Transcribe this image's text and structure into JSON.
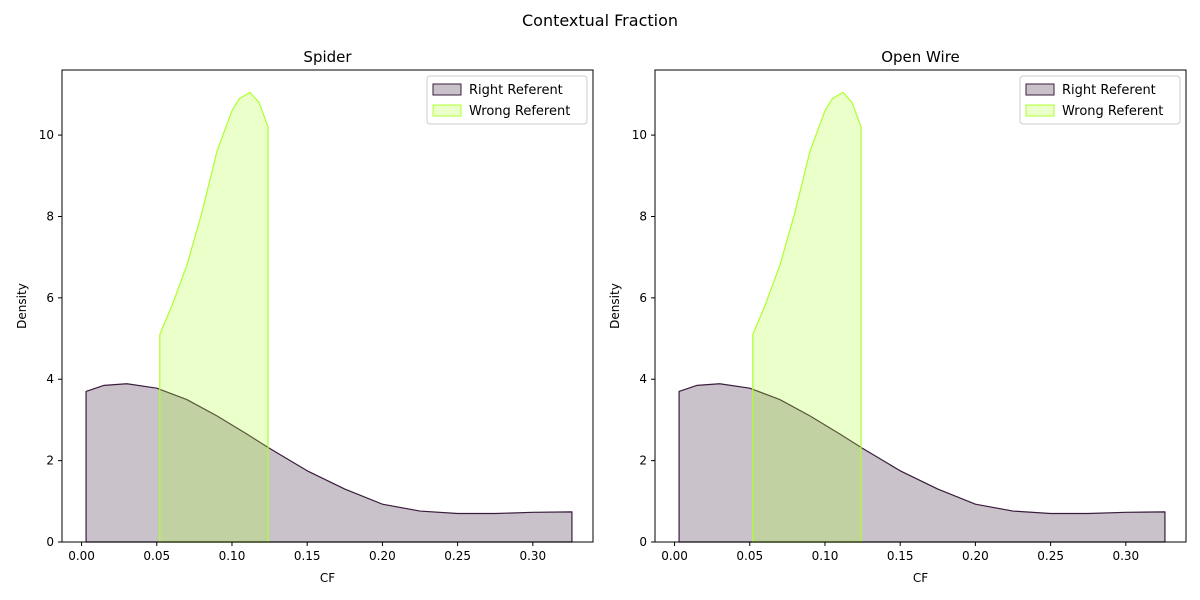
{
  "suptitle": "Contextual Fraction",
  "chart_data": [
    {
      "type": "area",
      "title": "Spider",
      "xlabel": "CF",
      "ylabel": "Density",
      "xlim": [
        -0.013,
        0.34
      ],
      "ylim": [
        0,
        11.6
      ],
      "xticks": [
        0.0,
        0.05,
        0.1,
        0.15,
        0.2,
        0.25,
        0.3
      ],
      "xtick_labels": [
        "0.00",
        "0.05",
        "0.10",
        "0.15",
        "0.20",
        "0.25",
        "0.30"
      ],
      "yticks": [
        0,
        2,
        4,
        6,
        8,
        10
      ],
      "ytick_labels": [
        "0",
        "2",
        "4",
        "6",
        "8",
        "10"
      ],
      "legend": "top-right",
      "series": [
        {
          "name": "Right Referent",
          "color": "#3b1c3e",
          "x": [
            0.003,
            0.015,
            0.03,
            0.05,
            0.07,
            0.09,
            0.11,
            0.125,
            0.15,
            0.175,
            0.2,
            0.225,
            0.25,
            0.275,
            0.3,
            0.326
          ],
          "y": [
            3.7,
            3.85,
            3.89,
            3.78,
            3.5,
            3.1,
            2.65,
            2.3,
            1.75,
            1.3,
            0.93,
            0.76,
            0.7,
            0.7,
            0.73,
            0.74
          ]
        },
        {
          "name": "Wrong Referent",
          "color": "#adff2f",
          "x": [
            0.052,
            0.06,
            0.07,
            0.08,
            0.09,
            0.1,
            0.105,
            0.112,
            0.118,
            0.124
          ],
          "y": [
            5.1,
            5.8,
            6.8,
            8.1,
            9.6,
            10.6,
            10.9,
            11.05,
            10.8,
            10.2
          ]
        }
      ]
    },
    {
      "type": "area",
      "title": "Open Wire",
      "xlabel": "CF",
      "ylabel": "Density",
      "xlim": [
        -0.013,
        0.34
      ],
      "ylim": [
        0,
        11.6
      ],
      "xticks": [
        0.0,
        0.05,
        0.1,
        0.15,
        0.2,
        0.25,
        0.3
      ],
      "xtick_labels": [
        "0.00",
        "0.05",
        "0.10",
        "0.15",
        "0.20",
        "0.25",
        "0.30"
      ],
      "yticks": [
        0,
        2,
        4,
        6,
        8,
        10
      ],
      "ytick_labels": [
        "0",
        "2",
        "4",
        "6",
        "8",
        "10"
      ],
      "legend": "top-right",
      "series": [
        {
          "name": "Right Referent",
          "color": "#3b1c3e",
          "x": [
            0.003,
            0.015,
            0.03,
            0.05,
            0.07,
            0.09,
            0.11,
            0.125,
            0.15,
            0.175,
            0.2,
            0.225,
            0.25,
            0.275,
            0.3,
            0.326
          ],
          "y": [
            3.7,
            3.85,
            3.89,
            3.78,
            3.5,
            3.1,
            2.65,
            2.3,
            1.75,
            1.3,
            0.93,
            0.76,
            0.7,
            0.7,
            0.73,
            0.74
          ]
        },
        {
          "name": "Wrong Referent",
          "color": "#adff2f",
          "x": [
            0.052,
            0.06,
            0.07,
            0.08,
            0.09,
            0.1,
            0.105,
            0.112,
            0.118,
            0.124
          ],
          "y": [
            5.1,
            5.8,
            6.8,
            8.1,
            9.6,
            10.6,
            10.9,
            11.05,
            10.8,
            10.2
          ]
        }
      ]
    }
  ]
}
